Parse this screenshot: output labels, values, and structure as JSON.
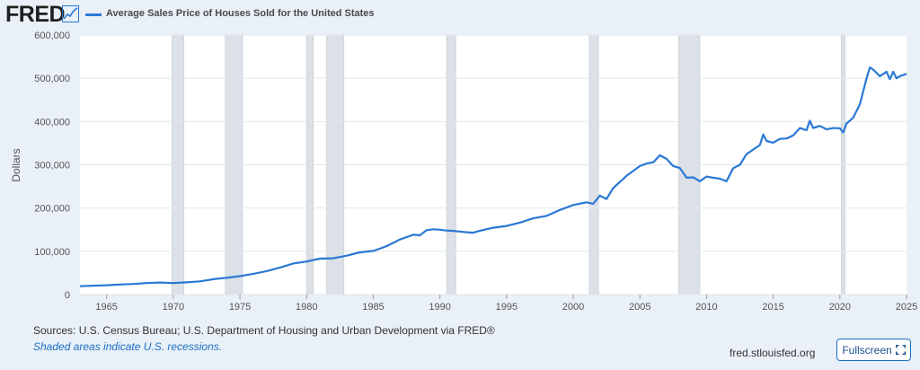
{
  "header": {
    "logo_text": "FRED",
    "logo_icon": "line-chart-icon",
    "legend_label": "Average Sales Price of Houses Sold for the United States",
    "line_color": "#2a78d4"
  },
  "footer": {
    "sources": "Sources: U.S. Census Bureau; U.S. Department of Housing and Urban Development via FRED®",
    "note": "Shaded areas indicate U.S. recessions.",
    "site": "fred.stlouisfed.org",
    "fullscreen_label": "Fullscreen",
    "fullscreen_icon": "fullscreen-icon"
  },
  "chart_data": {
    "type": "line",
    "title": "",
    "xlabel": "",
    "ylabel": "Dollars",
    "xlim": [
      1963.0,
      2025.0
    ],
    "ylim": [
      0,
      600000
    ],
    "x_ticks": [
      1965,
      1970,
      1975,
      1980,
      1985,
      1990,
      1995,
      2000,
      2005,
      2010,
      2015,
      2020,
      2025
    ],
    "y_ticks": [
      0,
      100000,
      200000,
      300000,
      400000,
      500000,
      600000
    ],
    "y_tick_labels": [
      "0",
      "100,000",
      "200,000",
      "300,000",
      "400,000",
      "500,000",
      "600,000"
    ],
    "grid": "horizontal",
    "legend": "top-left",
    "recessions": [
      [
        1969.9,
        1970.8
      ],
      [
        1973.9,
        1975.2
      ],
      [
        1980.0,
        1980.5
      ],
      [
        1981.5,
        1982.8
      ],
      [
        1990.5,
        1991.2
      ],
      [
        2001.2,
        2001.9
      ],
      [
        2007.9,
        2009.5
      ],
      [
        2020.1,
        2020.4
      ]
    ],
    "series": [
      {
        "name": "Average Sales Price of Houses Sold for the United States",
        "color": "#2a78d4",
        "x": [
          1963.0,
          1964.0,
          1965.0,
          1966.0,
          1967.0,
          1968.0,
          1969.0,
          1970.0,
          1971.0,
          1972.0,
          1973.0,
          1974.0,
          1975.0,
          1976.0,
          1977.0,
          1978.0,
          1979.0,
          1980.0,
          1981.0,
          1982.0,
          1983.0,
          1984.0,
          1985.0,
          1986.0,
          1987.0,
          1988.0,
          1988.5,
          1989.0,
          1989.5,
          1990.0,
          1990.5,
          1991.0,
          1992.0,
          1992.5,
          1993.0,
          1994.0,
          1995.0,
          1996.0,
          1997.0,
          1998.0,
          1999.0,
          2000.0,
          2001.0,
          2001.5,
          2002.0,
          2002.5,
          2003.0,
          2004.0,
          2005.0,
          2005.5,
          2006.0,
          2006.5,
          2007.0,
          2007.5,
          2008.0,
          2008.5,
          2009.0,
          2009.5,
          2010.0,
          2010.5,
          2011.0,
          2011.5,
          2012.0,
          2012.5,
          2013.0,
          2014.0,
          2014.25,
          2014.5,
          2015.0,
          2015.5,
          2016.0,
          2016.5,
          2017.0,
          2017.5,
          2017.75,
          2018.0,
          2018.5,
          2019.0,
          2019.5,
          2020.0,
          2020.25,
          2020.5,
          2021.0,
          2021.5,
          2022.0,
          2022.25,
          2022.5,
          2023.0,
          2023.5,
          2023.75,
          2024.0,
          2024.25,
          2024.5,
          2025.0
        ],
        "y": [
          19300,
          20500,
          21500,
          23300,
          24600,
          26600,
          27900,
          26600,
          28300,
          30500,
          35500,
          38900,
          42600,
          48000,
          54200,
          62500,
          71800,
          76400,
          83000,
          83900,
          89800,
          97600,
          100800,
          111900,
          127200,
          138300,
          137000,
          148800,
          151000,
          149800,
          148000,
          147200,
          144100,
          143000,
          147700,
          154500,
          158700,
          166400,
          176200,
          181900,
          195600,
          207000,
          213200,
          210000,
          228700,
          221000,
          246300,
          274500,
          297000,
          303000,
          305900,
          322000,
          313600,
          297000,
          292600,
          270000,
          270900,
          262000,
          272900,
          270000,
          267900,
          262000,
          292200,
          300000,
          324500,
          345800,
          370000,
          355000,
          351000,
          360000,
          360900,
          368000,
          384900,
          380000,
          402000,
          385000,
          390000,
          382000,
          385000,
          384600,
          375000,
          395000,
          408800,
          440000,
          500000,
          525000,
          520000,
          505000,
          515000,
          498000,
          515000,
          500000,
          505000,
          510000
        ]
      }
    ]
  }
}
